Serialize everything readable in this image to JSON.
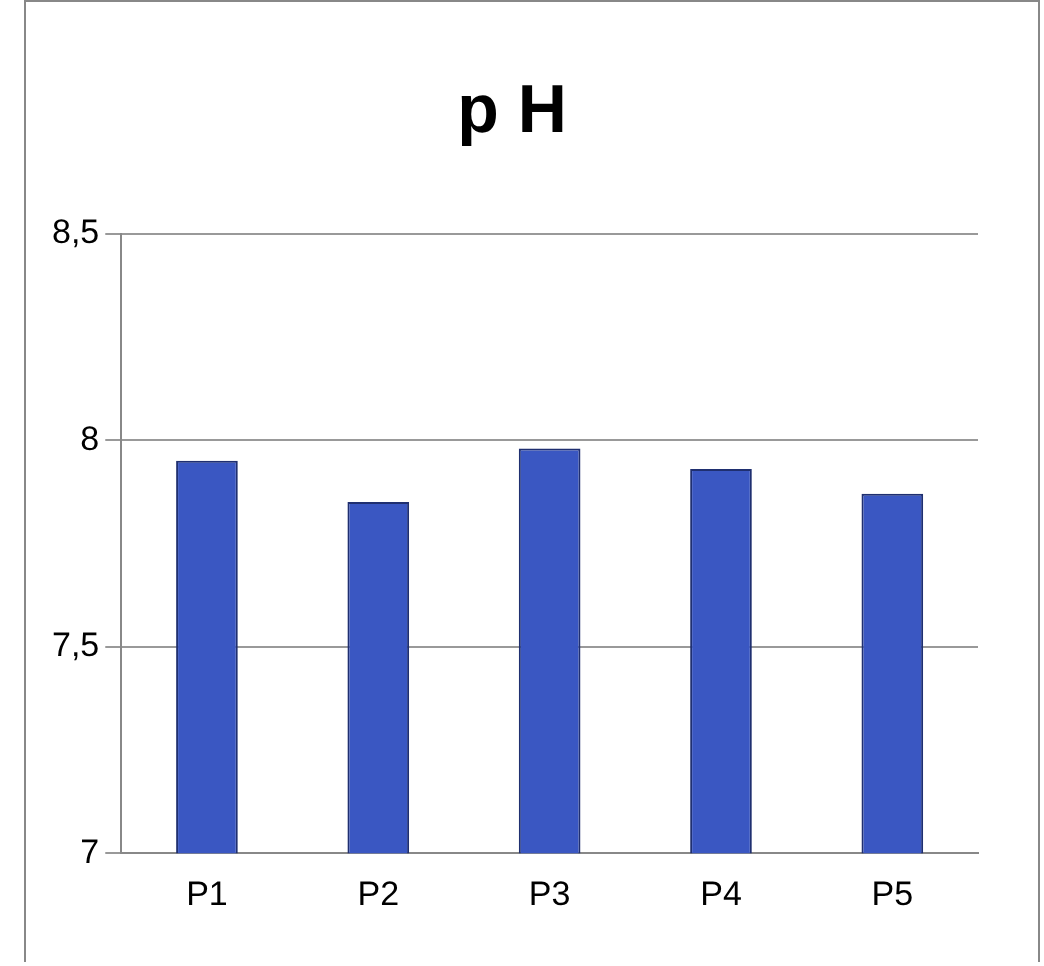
{
  "chart_data": {
    "type": "bar",
    "title": "p H",
    "categories": [
      "P1",
      "P2",
      "P3",
      "P4",
      "P5"
    ],
    "values": [
      7.95,
      7.85,
      7.98,
      7.93,
      7.87
    ],
    "color": "#3a57c2",
    "ylim": [
      7,
      8.5
    ],
    "yticks": [
      7,
      {
        "value": 7.5,
        "label": "7,5"
      },
      8,
      {
        "value": 8.5,
        "label": "8,5"
      }
    ],
    "grid": "y",
    "legend": false
  }
}
